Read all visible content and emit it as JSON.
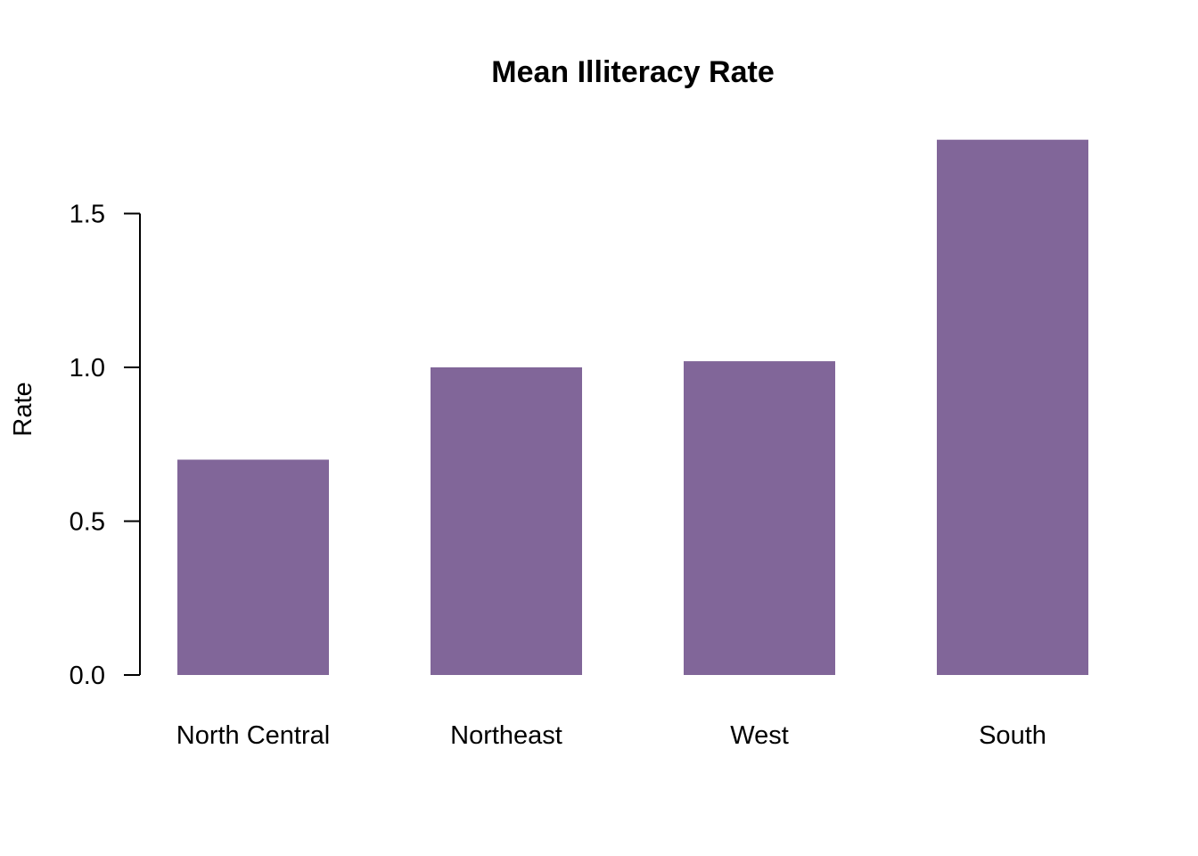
{
  "chart_data": {
    "type": "bar",
    "title": "Mean Illiteracy Rate",
    "xlabel": "",
    "ylabel": "Rate",
    "categories": [
      "North Central",
      "Northeast",
      "West",
      "South"
    ],
    "values": [
      0.7,
      1.0,
      1.02,
      1.74
    ],
    "ylim": [
      0,
      1.5
    ],
    "yticks": [
      "0.0",
      "0.5",
      "1.0",
      "1.5"
    ],
    "bar_color": "#816699",
    "grid": false,
    "legend": "none"
  }
}
